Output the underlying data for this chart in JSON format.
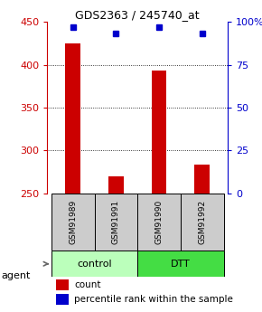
{
  "title": "GDS2363 / 245740_at",
  "samples": [
    "GSM91989",
    "GSM91991",
    "GSM91990",
    "GSM91992"
  ],
  "counts": [
    425,
    270,
    393,
    284
  ],
  "percentiles": [
    97,
    93,
    97,
    93
  ],
  "ylim_left": [
    250,
    450
  ],
  "yticks_left": [
    250,
    300,
    350,
    400,
    450
  ],
  "yticks_right": [
    0,
    25,
    50,
    75,
    100
  ],
  "ytick_labels_right": [
    "0",
    "25",
    "50",
    "75",
    "100%"
  ],
  "bar_color": "#cc0000",
  "dot_color": "#0000cc",
  "groups": [
    {
      "label": "control",
      "color": "#bbffbb",
      "span": [
        0,
        2
      ]
    },
    {
      "label": "DTT",
      "color": "#44dd44",
      "span": [
        2,
        4
      ]
    }
  ],
  "agent_label": "agent",
  "legend_count_label": "count",
  "legend_pct_label": "percentile rank within the sample",
  "grid_yticks": [
    300,
    350,
    400
  ],
  "sample_box_color": "#cccccc",
  "background_color": "#ffffff",
  "bar_width": 0.35
}
